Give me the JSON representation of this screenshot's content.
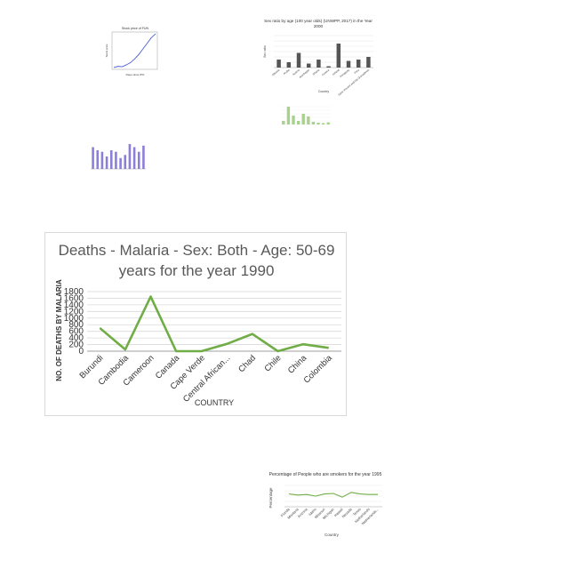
{
  "chart_data": [
    {
      "type": "line",
      "title": "Deaths - Malaria - Sex: Both - Age: 50-69 years for the year 1990",
      "xlabel": "COUNTRY",
      "ylabel": "NO. OF DEATHS BY MALARIA",
      "categories": [
        "Burundi",
        "Cambodia",
        "Cameroon",
        "Canada",
        "Cape Verde",
        "Central African...",
        "Chad",
        "Chile",
        "China",
        "Colombia"
      ],
      "values": [
        700,
        50,
        1650,
        0,
        0,
        220,
        520,
        0,
        210,
        100
      ],
      "yticks": [
        "0",
        "200",
        "400",
        "600",
        "800",
        "1000",
        "1200",
        "1400",
        "1600",
        "1800"
      ],
      "ylim": [
        0,
        1800
      ],
      "grid": true,
      "color": "#70ad47"
    },
    {
      "type": "line",
      "title": "Stock price of FUN",
      "xlabel": "Days since IPO",
      "ylabel": "Stock price",
      "values": [
        5,
        8,
        7,
        12,
        18,
        28,
        40,
        55,
        70,
        85,
        95
      ],
      "ylim": [
        0,
        100
      ],
      "color": "#4a5fd0"
    },
    {
      "type": "bar",
      "title": "Sex ratio by age (100 year olds) (UNWPP, 2017) in the Year 2000",
      "xlabel": "Country",
      "ylabel": "Sex ratio",
      "categories": [
        "Albania",
        "Aruba",
        "Austria",
        "Azerbaijan",
        "Ghana",
        "Greece",
        "Ireland",
        "Paraguay",
        "Peru",
        "Saint Vincent and the Grenadines"
      ],
      "values": [
        30,
        20,
        55,
        15,
        30,
        5,
        90,
        25,
        30,
        40
      ],
      "ylim": [
        0,
        120
      ],
      "color": "#555555"
    },
    {
      "type": "bar",
      "color": "#a9d18e",
      "values": [
        20,
        100,
        50,
        20,
        60,
        45,
        15,
        10,
        8,
        12
      ]
    },
    {
      "type": "bar",
      "color": "#8b7fd9",
      "values": [
        70,
        60,
        55,
        40,
        60,
        55,
        35,
        45,
        80,
        70,
        55,
        75
      ]
    },
    {
      "type": "line",
      "title": "Percentage of People who are smokers for the year 1995",
      "xlabel": "Country",
      "ylabel": "Percentage",
      "categories": [
        "Florida",
        "Montana",
        "Arizona",
        "Idaho",
        "Missouri",
        "Michigan",
        "Hawaii",
        "Nevada",
        "Texas",
        "Netherlands",
        "Netherlands..."
      ],
      "values": [
        24,
        22,
        23,
        20,
        24,
        25,
        18,
        27,
        24,
        23,
        23
      ],
      "ylim": [
        0,
        40
      ],
      "color": "#70ad47"
    }
  ]
}
